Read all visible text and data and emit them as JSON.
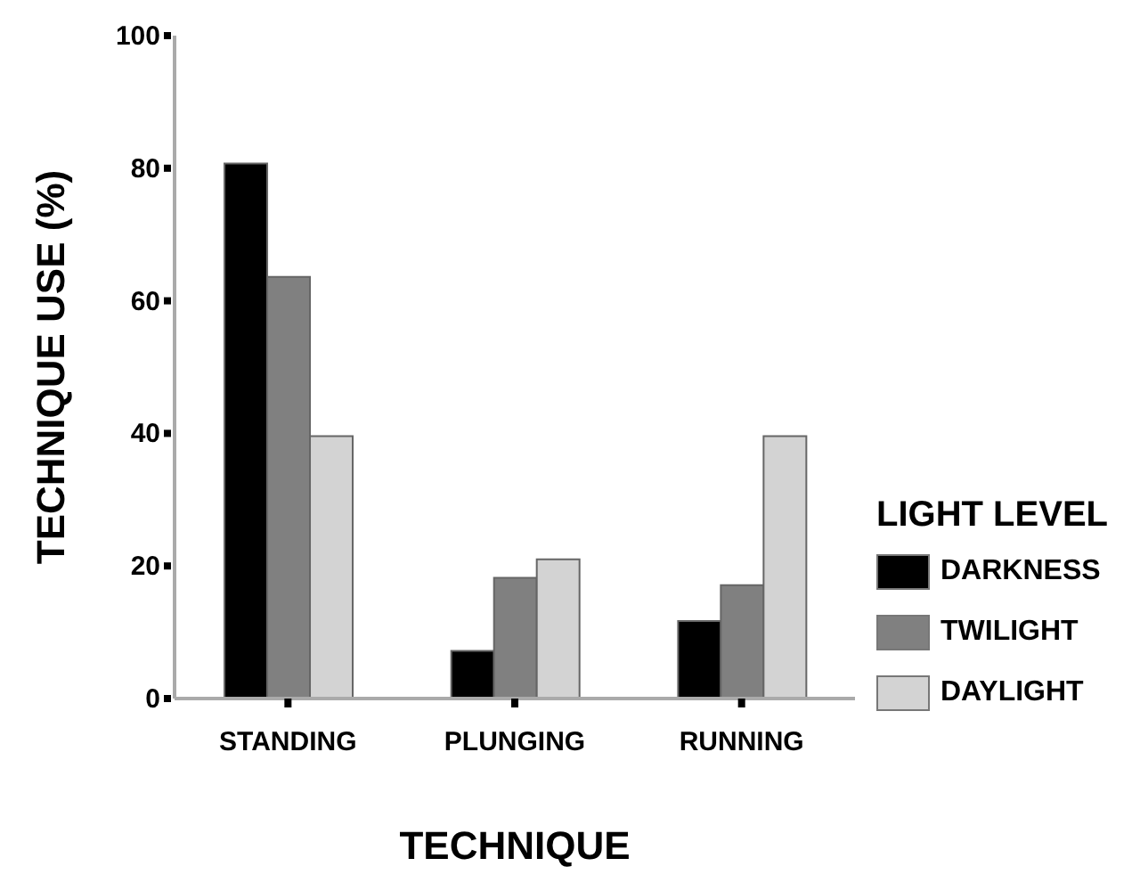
{
  "chart_data": {
    "type": "bar",
    "xlabel": "TECHNIQUE",
    "ylabel": "TECHNIQUE USE (%)",
    "legend_title": "LIGHT LEVEL",
    "categories": [
      "STANDING",
      "PLUNGING",
      "RUNNING"
    ],
    "series": [
      {
        "name": "DARKNESS",
        "color": "#000000",
        "values": [
          80.7,
          7.2,
          11.7
        ]
      },
      {
        "name": "TWILIGHT",
        "color": "#808080",
        "values": [
          63.6,
          18.2,
          17.1
        ]
      },
      {
        "name": "DAYLIGHT",
        "color": "#d3d3d3",
        "values": [
          39.6,
          21.0,
          39.6
        ]
      }
    ],
    "ylim": [
      0,
      100
    ],
    "yticks": [
      0,
      20,
      40,
      60,
      80,
      100
    ],
    "grid": false,
    "legend": "right"
  }
}
